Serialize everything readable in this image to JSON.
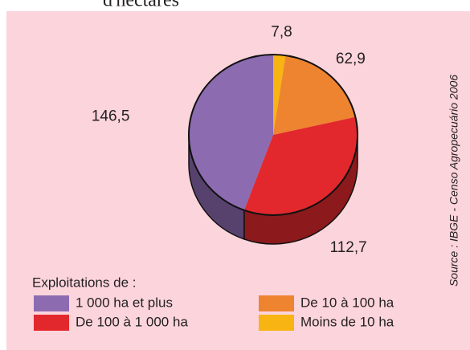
{
  "chart_data": {
    "type": "pie",
    "title": "d'hectares",
    "categories": [
      "Moins de 10 ha",
      "De 10 à 100 ha",
      "De 100 à 1 000 ha",
      "1 000 ha et plus"
    ],
    "values": [
      7.8,
      62.9,
      112.7,
      146.5
    ],
    "value_labels": [
      "7,8",
      "62,9",
      "112,7",
      "146,5"
    ],
    "colors": [
      "#f8b412",
      "#ee8430",
      "#e2282d",
      "#8c6bb1"
    ],
    "legend_title": "Exploitations de :",
    "source": "Source : IBGE - Censo Agropecuário 2006"
  }
}
